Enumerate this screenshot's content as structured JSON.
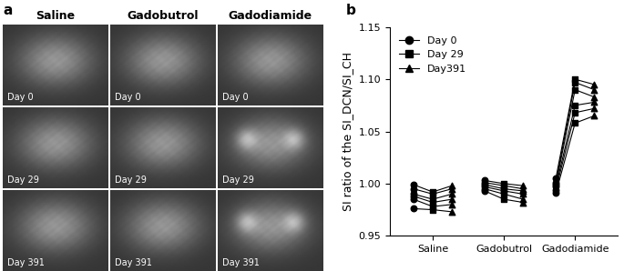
{
  "panel_a": {
    "label": "a",
    "columns": [
      "Saline",
      "Gadobutrol",
      "Gadodiamide"
    ],
    "row_labels": [
      "Day 0",
      "Day 29",
      "Day 391"
    ]
  },
  "chart_data": {
    "type": "line",
    "annotations": [
      "b"
    ],
    "y_label": "SI ratio of the SI_DCN/SI_CH",
    "categories": [
      "Saline",
      "Gadobutrol",
      "Gadodiamide"
    ],
    "ylim": [
      0.95,
      1.15
    ],
    "yticks": [
      {
        "value": 0.95,
        "label": "0.95"
      },
      {
        "value": 1.0,
        "label": "1.00"
      },
      {
        "value": 1.05,
        "label": "1.05"
      },
      {
        "value": 1.1,
        "label": "1.10"
      },
      {
        "value": 1.15,
        "label": "1.15"
      }
    ],
    "legend": "upper left",
    "color": "#000000",
    "series": [
      {
        "name": "Day 0",
        "marker": "circle",
        "values": [
          [
            0.999,
            0.995,
            0.99,
            0.988,
            0.985,
            0.976
          ],
          [
            1.003,
            1.001,
            0.999,
            0.997,
            0.995,
            0.993
          ],
          [
            1.005,
            1.001,
            0.999,
            0.997,
            0.994,
            0.991
          ]
        ]
      },
      {
        "name": "Day 29",
        "marker": "square",
        "values": [
          [
            0.992,
            0.99,
            0.985,
            0.982,
            0.978,
            0.975
          ],
          [
            1.0,
            0.998,
            0.995,
            0.993,
            0.99,
            0.985
          ],
          [
            1.1,
            1.097,
            1.09,
            1.075,
            1.068,
            1.058
          ]
        ]
      },
      {
        "name": "Day391",
        "marker": "triangle",
        "values": [
          [
            0.998,
            0.995,
            0.99,
            0.985,
            0.98,
            0.973
          ],
          [
            0.998,
            0.995,
            0.993,
            0.99,
            0.985,
            0.982
          ],
          [
            1.095,
            1.09,
            1.083,
            1.078,
            1.072,
            1.065
          ]
        ]
      }
    ]
  }
}
